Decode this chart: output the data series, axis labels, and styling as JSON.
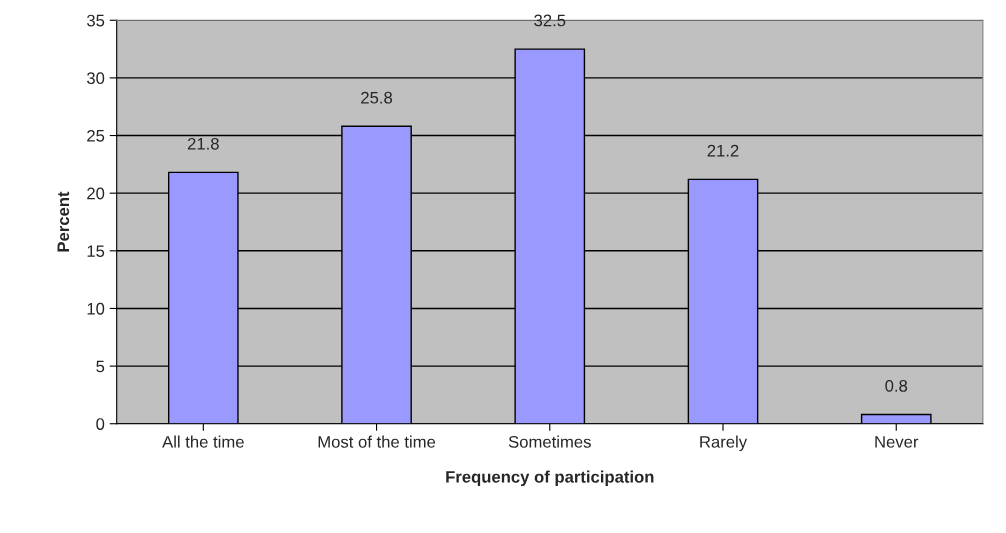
{
  "chart_data": {
    "type": "bar",
    "xlabel": "Frequency of participation",
    "ylabel": "Percent",
    "categories": [
      "All the time",
      "Most of the time",
      "Sometimes",
      "Rarely",
      "Never"
    ],
    "values": [
      21.8,
      25.8,
      32.5,
      21.2,
      0.8
    ],
    "color": "#9999ff",
    "ylim": [
      0,
      35
    ],
    "yticks": [
      0,
      5,
      10,
      15,
      20,
      25,
      30,
      35
    ],
    "grid": "y",
    "data_labels": true
  }
}
